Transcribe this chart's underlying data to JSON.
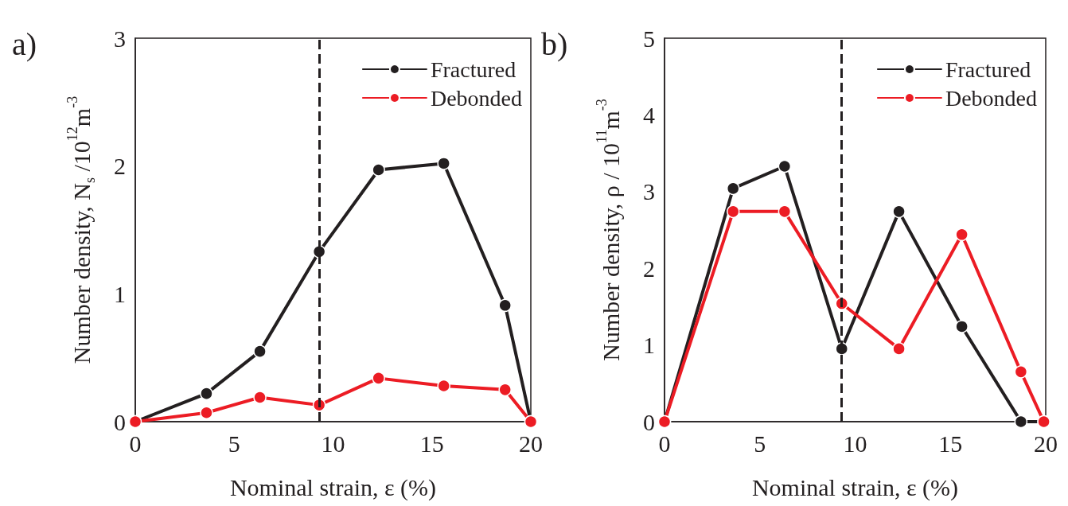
{
  "chart_data": [
    {
      "type": "line",
      "title": "a)",
      "xlabel": "Nominal strain, ε (%)",
      "ylabel": "Number density, N$_{s}$ /10$^{12}$m$^{-3}$",
      "xlim": [
        0,
        20
      ],
      "xticks": [
        0,
        5,
        10,
        15,
        20
      ],
      "ylim": [
        0,
        3
      ],
      "yticks": [
        0,
        1,
        2,
        3
      ],
      "legend": "top right",
      "marker": "circle",
      "line_style": "solid",
      "grid": false,
      "ref_lines": [
        {
          "axis": "x",
          "value": 9.3,
          "color": "#231f20",
          "line_style": "dashed"
        }
      ],
      "series": [
        {
          "name": "Fractured",
          "color": "#231f20",
          "x": [
            0,
            3.6,
            6.3,
            9.3,
            12.3,
            15.6,
            18.7,
            20
          ],
          "values": [
            0,
            0.22,
            0.55,
            1.33,
            1.97,
            2.02,
            0.91,
            0
          ]
        },
        {
          "name": "Debonded",
          "color": "#ec1c24",
          "x": [
            0,
            3.6,
            6.3,
            9.3,
            12.3,
            15.6,
            18.7,
            20
          ],
          "values": [
            0,
            0.07,
            0.19,
            0.13,
            0.34,
            0.28,
            0.25,
            0
          ]
        }
      ]
    },
    {
      "type": "line",
      "title": "b)",
      "xlabel": "Nominal strain, ε (%)",
      "ylabel": "Number density, ρ / 10$^{11}$m$^{-3}$",
      "xlim": [
        0,
        20
      ],
      "xticks": [
        0,
        5,
        10,
        15,
        20
      ],
      "ylim": [
        0,
        5
      ],
      "yticks": [
        0,
        1,
        2,
        3,
        4,
        5
      ],
      "legend": "top right",
      "marker": "circle",
      "line_style": "solid",
      "grid": false,
      "ref_lines": [
        {
          "axis": "x",
          "value": 9.3,
          "color": "#231f20",
          "line_style": "dashed"
        }
      ],
      "series": [
        {
          "name": "Fractured",
          "color": "#231f20",
          "x": [
            0,
            3.6,
            6.3,
            9.3,
            12.3,
            15.6,
            18.7,
            19.9
          ],
          "values": [
            0,
            3.04,
            3.33,
            0.95,
            2.74,
            1.24,
            0,
            0
          ]
        },
        {
          "name": "Debonded",
          "color": "#ec1c24",
          "x": [
            0,
            3.6,
            6.3,
            9.3,
            12.3,
            15.6,
            18.7,
            19.9
          ],
          "values": [
            0,
            2.74,
            2.74,
            1.54,
            0.95,
            2.44,
            0.65,
            0
          ]
        }
      ]
    }
  ]
}
